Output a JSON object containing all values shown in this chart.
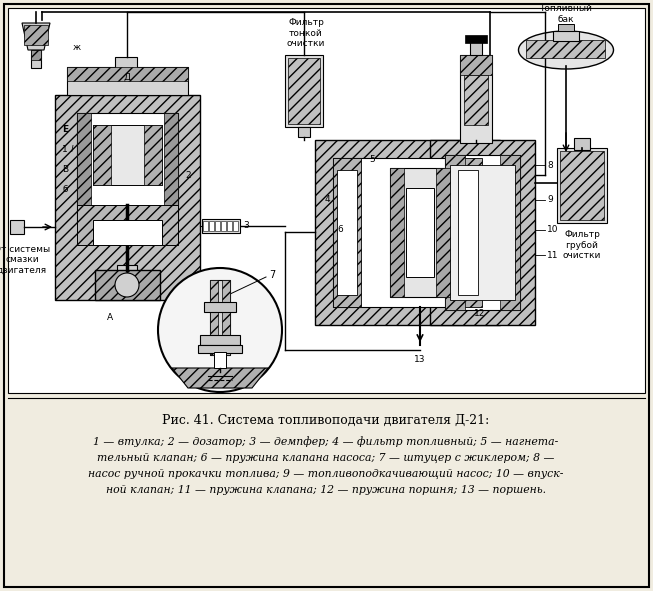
{
  "title": "Рис. 41. Система топливоподачи двигателя Д-21:",
  "caption_lines": [
    "1 — втулка; 2 — дозатор; 3 — демпфер; 4 — фильтр топливный; 5 — нагнета-",
    "тельный клапан; 6 — пружина клапана насоса; 7 — штуцер с жиклером; 8 —",
    "насос ручной прокачки топлива; 9 — топливоподкачивающий насос; 10 — впуск-",
    "ной клапан; 11 — пружина клапана; 12 — пружина поршня; 13 — поршень."
  ],
  "bg_color": "#f0ece0",
  "diagram_bg": "#ffffff",
  "border_color": "#333333",
  "text_color": "#111111",
  "figsize": [
    6.53,
    5.91
  ],
  "dpi": 100,
  "labels": {
    "fuel_tank": "Топливный\nбак",
    "filter_fine": "Фильтр\nтонкой\nочистки",
    "filter_coarse": "Фильтр\nгрубой\nочистки",
    "from_oil": "От системы\nсмазки\nдвигателя"
  }
}
